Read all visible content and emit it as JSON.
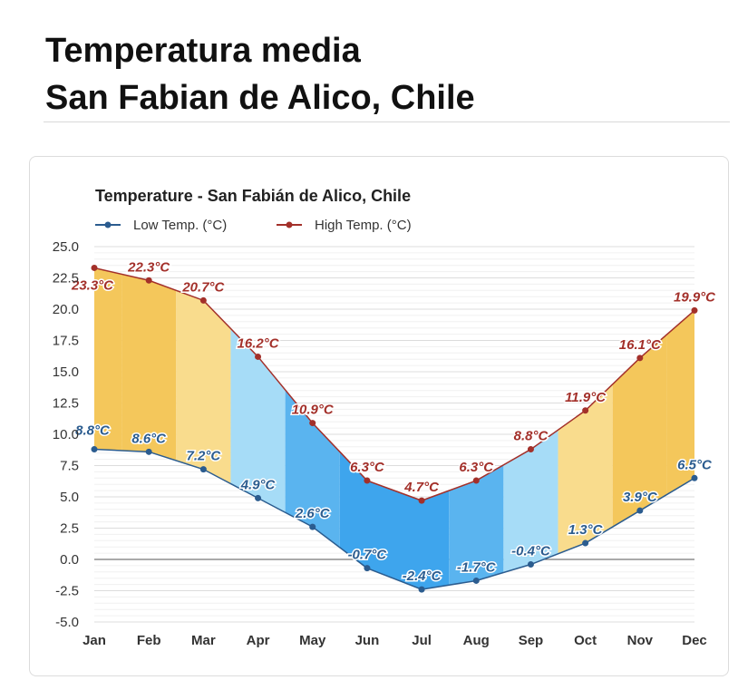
{
  "page": {
    "title_line1": "Temperatura media",
    "title_line2": "San Fabian de Alico, Chile"
  },
  "chart_data": {
    "type": "area",
    "title": "Temperature - San Fabián de Alico, Chile",
    "categories": [
      "Jan",
      "Feb",
      "Mar",
      "Apr",
      "May",
      "Jun",
      "Jul",
      "Aug",
      "Sep",
      "Oct",
      "Nov",
      "Dec"
    ],
    "series": [
      {
        "name": "Low Temp. (°C)",
        "color": "#2b5c8f",
        "values": [
          8.8,
          8.6,
          7.2,
          4.9,
          2.6,
          -0.7,
          -2.4,
          -1.7,
          -0.4,
          1.3,
          3.9,
          6.5
        ],
        "labels": [
          "8.8°C",
          "8.6°C",
          "7.2°C",
          "4.9°C",
          "2.6°C",
          "-0.7°C",
          "-2.4°C",
          "-1.7°C",
          "-0.4°C",
          "1.3°C",
          "3.9°C",
          "6.5°C"
        ]
      },
      {
        "name": "High Temp. (°C)",
        "color": "#a3302a",
        "values": [
          23.3,
          22.3,
          20.7,
          16.2,
          10.9,
          6.3,
          4.7,
          6.3,
          8.8,
          11.9,
          16.1,
          19.9
        ],
        "labels": [
          "23.3°C",
          "22.3°C",
          "20.7°C",
          "16.2°C",
          "10.9°C",
          "6.3°C",
          "4.7°C",
          "6.3°C",
          "8.8°C",
          "11.9°C",
          "16.1°C",
          "19.9°C"
        ]
      }
    ],
    "band_colors": [
      "#f4c75b",
      "#f4c75b",
      "#f9dc8d",
      "#a6dcf7",
      "#5ab4ef",
      "#3ea5ed",
      "#3ea5ed",
      "#5ab4ef",
      "#a6dcf7",
      "#f9dc8d",
      "#f4c75b",
      "#f4c75b"
    ],
    "ylim": [
      -5,
      25
    ],
    "yticks": [
      "25.0",
      "22.5",
      "20.0",
      "17.5",
      "15.0",
      "12.5",
      "10.0",
      "7.5",
      "5.0",
      "2.5",
      "0.0",
      "-2.5",
      "-5.0"
    ],
    "ytick_values": [
      25,
      22.5,
      20,
      17.5,
      15,
      12.5,
      10,
      7.5,
      5,
      2.5,
      0,
      -2.5,
      -5
    ],
    "grid": true,
    "legend_position": "top-left"
  }
}
